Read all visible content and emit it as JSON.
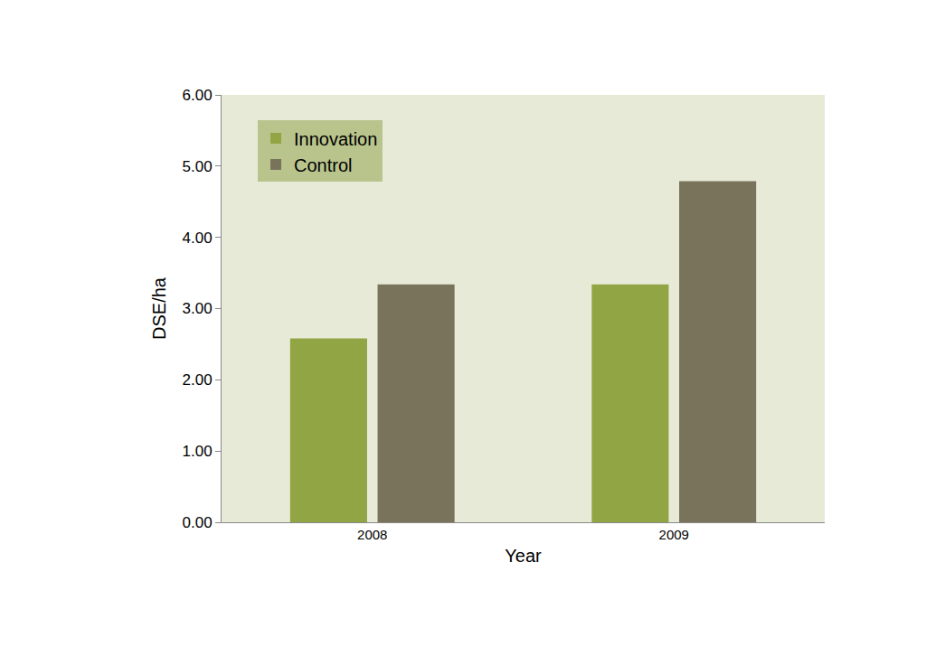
{
  "chart_data": {
    "type": "bar",
    "x_label": "Year",
    "y_label": "DSE/ha",
    "categories": [
      "2008",
      "2009"
    ],
    "series": [
      {
        "name": "Innovation",
        "color": "#92a545",
        "values": [
          2.58,
          3.34
        ]
      },
      {
        "name": "Control",
        "color": "#7a735c",
        "values": [
          3.34,
          4.79
        ]
      }
    ],
    "ylim": [
      0,
      6
    ],
    "yticks": [
      {
        "value": 0,
        "label": "0.00"
      },
      {
        "value": 1,
        "label": "1.00"
      },
      {
        "value": 2,
        "label": "2.00"
      },
      {
        "value": 3,
        "label": "3.00"
      },
      {
        "value": 4,
        "label": "4.00"
      },
      {
        "value": 5,
        "label": "5.00"
      },
      {
        "value": 6,
        "label": "6.00"
      }
    ],
    "grid": false,
    "legend": "upper left"
  }
}
